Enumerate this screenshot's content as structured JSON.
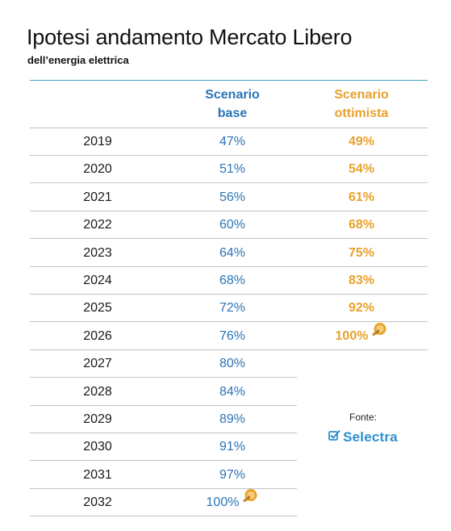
{
  "title": "Ipotesi andamento Mercato Libero",
  "subtitle": "dell’energia elettrica",
  "headers": {
    "base": "Scenario\nbase",
    "optimistic": "Scenario\nottimista"
  },
  "rows": [
    {
      "year": "2019",
      "base": "47%",
      "optimistic": "49%"
    },
    {
      "year": "2020",
      "base": "51%",
      "optimistic": "54%"
    },
    {
      "year": "2021",
      "base": "56%",
      "optimistic": "61%"
    },
    {
      "year": "2022",
      "base": "60%",
      "optimistic": "68%"
    },
    {
      "year": "2023",
      "base": "64%",
      "optimistic": "75%"
    },
    {
      "year": "2024",
      "base": "68%",
      "optimistic": "83%"
    },
    {
      "year": "2025",
      "base": "72%",
      "optimistic": "92%"
    },
    {
      "year": "2026",
      "base": "76%",
      "optimistic": "100%"
    },
    {
      "year": "2027",
      "base": "80%",
      "optimistic": ""
    },
    {
      "year": "2028",
      "base": "84%",
      "optimistic": ""
    },
    {
      "year": "2029",
      "base": "89%",
      "optimistic": ""
    },
    {
      "year": "2030",
      "base": "91%",
      "optimistic": ""
    },
    {
      "year": "2031",
      "base": "97%",
      "optimistic": ""
    },
    {
      "year": "2032",
      "base": "100%",
      "optimistic": ""
    }
  ],
  "source": {
    "label": "Fonte:",
    "brand": "Selectra",
    "brand_icon": "checkbox-icon"
  },
  "icons": {
    "completion": "lightbulb-icon"
  },
  "colors": {
    "base": "#2a74b8",
    "optimistic": "#e8a12d",
    "rule": "#3ba7c9",
    "brand": "#2d8fd0"
  }
}
